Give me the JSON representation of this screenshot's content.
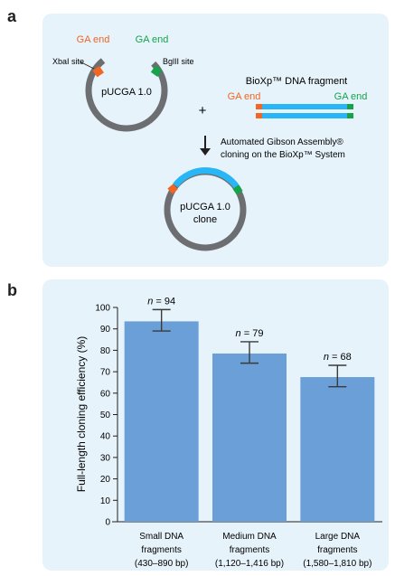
{
  "panel_a": {
    "letter": "a",
    "plasmid_name": "pUCGA 1.0",
    "ga_end_left": "GA end",
    "ga_end_right": "GA end",
    "xbai_site": "XbaI site",
    "bglii_site": "BglII site",
    "plus": "+",
    "fragment_title": "BioXp™ DNA fragment",
    "fragment_ga_end_left": "GA end",
    "fragment_ga_end_right": "GA end",
    "step_line1": "Automated Gibson Assembly®",
    "step_line2": "cloning on the BioXp™ System",
    "clone_line1": "pUCGA 1.0",
    "clone_line2": "clone",
    "colors": {
      "orange": "#f26522",
      "green": "#16a34a",
      "blue": "#29b6f6",
      "gray": "#6d6e71"
    }
  },
  "panel_b": {
    "letter": "b"
  },
  "chart_data": {
    "type": "bar",
    "ylabel": "Full-length cloning efficiency (%)",
    "ylim": [
      0,
      100
    ],
    "yticks": [
      0,
      10,
      20,
      30,
      40,
      50,
      60,
      70,
      80,
      90,
      100
    ],
    "categories": [
      [
        "Small DNA",
        "fragments",
        "(430–890 bp)"
      ],
      [
        "Medium DNA",
        "fragments",
        "(1,120–1,416 bp)"
      ],
      [
        "Large DNA",
        "fragments",
        "(1,580–1,810 bp)"
      ]
    ],
    "values": [
      93.5,
      78.5,
      67.5
    ],
    "error_low": [
      89,
      74,
      63
    ],
    "error_high": [
      99,
      84,
      73
    ],
    "n_labels": [
      "94",
      "79",
      "68"
    ],
    "n_prefix": "n",
    "bar_color": "#6a9fd8",
    "grid": false
  }
}
